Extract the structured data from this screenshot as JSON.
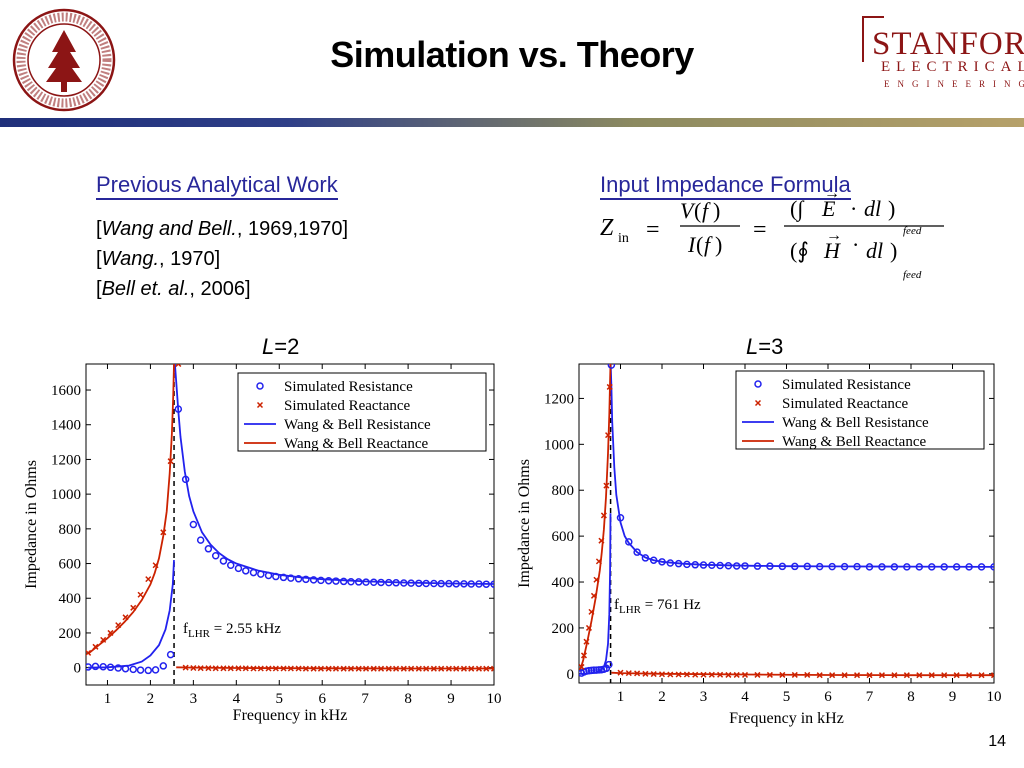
{
  "slide": {
    "title": "Simulation vs. Theory",
    "page_number": "14",
    "logo": {
      "line1": "STANFORD",
      "line2": "ELECTRICAL",
      "line3": "ENGINEERING"
    },
    "seal_text": "LELAND STANFORD JUNIOR UNIVERSITY · ORGANIZED 1891",
    "left_heading": "Previous Analytical Work",
    "refs": [
      {
        "author": "Wang and Bell.",
        "year": ", 1969,1970]"
      },
      {
        "author": "Wang.",
        "year": ", 1970]"
      },
      {
        "author": "Bell et. al.",
        "year": ", 2006]"
      }
    ],
    "right_heading": "Input Impedance Formula",
    "plot_left_label": {
      "var": "L",
      "val": "=2"
    },
    "plot_right_label": {
      "var": "L",
      "val": "=3"
    }
  },
  "chart_data": [
    {
      "type": "line",
      "xlabel": "Frequency in kHz",
      "ylabel": "Impedance in Ohms",
      "xlim": [
        0.5,
        10
      ],
      "ylim": [
        -100,
        1750
      ],
      "xticks": [
        1,
        2,
        3,
        4,
        5,
        6,
        7,
        8,
        9,
        10
      ],
      "yticks": [
        0,
        200,
        400,
        600,
        800,
        1000,
        1200,
        1400,
        1600
      ],
      "annotation": "= 2.55 kHz",
      "annotation_sub": "LHR",
      "marker_line_x": 2.55,
      "legend": [
        "Simulated Resistance",
        "Simulated Reactance",
        "Wang & Bell Resistance",
        "Wang & Bell Reactance"
      ],
      "colors": {
        "resistance": "#2222ee",
        "reactance": "#cc2200"
      },
      "series": [
        {
          "name": "Simulated Resistance",
          "kind": "points",
          "marker": "o",
          "x": [
            0.55,
            0.72,
            0.9,
            1.07,
            1.25,
            1.42,
            1.6,
            1.77,
            1.95,
            2.12,
            2.3,
            2.47,
            2.65,
            2.82,
            3.0,
            3.17,
            3.35,
            3.52,
            3.7,
            3.87,
            4.05,
            4.22,
            4.4,
            4.57,
            4.75,
            4.92,
            5.1,
            5.27,
            5.45,
            5.62,
            5.8,
            5.97,
            6.15,
            6.32,
            6.5,
            6.67,
            6.85,
            7.02,
            7.2,
            7.37,
            7.55,
            7.72,
            7.9,
            8.07,
            8.25,
            8.42,
            8.6,
            8.77,
            8.95,
            9.12,
            9.3,
            9.47,
            9.65,
            9.82,
            10.0
          ],
          "y": [
            4,
            7,
            5,
            2,
            -2,
            -6,
            -10,
            -14,
            -16,
            -13,
            10,
            75,
            1490,
            1085,
            825,
            735,
            685,
            645,
            615,
            590,
            572,
            558,
            548,
            539,
            531,
            525,
            520,
            516,
            512,
            509,
            506,
            503,
            501,
            499,
            497,
            495,
            494,
            493,
            492,
            491,
            490,
            489,
            488,
            487,
            486,
            485,
            485,
            484,
            484,
            483,
            483,
            482,
            482,
            481,
            481
          ]
        },
        {
          "name": "Simulated Reactance",
          "kind": "points",
          "marker": "x",
          "x": [
            0.55,
            0.72,
            0.9,
            1.07,
            1.25,
            1.42,
            1.6,
            1.77,
            1.95,
            2.12,
            2.3,
            2.47,
            2.65,
            2.82,
            3.0,
            3.17,
            3.35,
            3.52,
            3.7,
            3.87,
            4.05,
            4.22,
            4.4,
            4.57,
            4.75,
            4.92,
            5.1,
            5.27,
            5.45,
            5.62,
            5.8,
            5.97,
            6.15,
            6.32,
            6.5,
            6.67,
            6.85,
            7.02,
            7.2,
            7.37,
            7.55,
            7.72,
            7.9,
            8.07,
            8.25,
            8.42,
            8.6,
            8.77,
            8.95,
            9.12,
            9.3,
            9.47,
            9.65,
            9.82,
            10.0
          ],
          "y": [
            85,
            120,
            160,
            200,
            245,
            290,
            345,
            420,
            510,
            590,
            780,
            1190,
            1750,
            0,
            -2,
            -3,
            -3,
            -4,
            -4,
            -4,
            -4,
            -4,
            -5,
            -5,
            -5,
            -5,
            -5,
            -5,
            -5,
            -6,
            -6,
            -6,
            -6,
            -6,
            -6,
            -6,
            -6,
            -6,
            -6,
            -6,
            -6,
            -6,
            -6,
            -6,
            -6,
            -6,
            -6,
            -6,
            -6,
            -6,
            -6,
            -6,
            -6,
            -6,
            -6
          ]
        },
        {
          "name": "Wang & Bell Resistance",
          "kind": "line",
          "x": [
            2.57,
            2.6,
            2.65,
            2.7,
            2.8,
            2.9,
            3.0,
            3.2,
            3.4,
            3.6,
            3.8,
            4.0,
            4.5,
            5.0,
            5.5,
            6.0,
            7.0,
            8.0,
            9.0,
            10.0
          ],
          "y": [
            1750,
            1650,
            1480,
            1330,
            1130,
            990,
            900,
            780,
            710,
            660,
            625,
            600,
            560,
            535,
            520,
            510,
            497,
            490,
            485,
            482
          ]
        },
        {
          "name": "Wang & Bell Resistance (below f_LHR)",
          "kind": "line",
          "x": [
            0.55,
            1.0,
            1.5,
            1.8,
            2.0,
            2.2,
            2.35,
            2.45,
            2.52,
            2.55
          ],
          "y": [
            0,
            2,
            12,
            35,
            70,
            130,
            220,
            330,
            480,
            620
          ]
        },
        {
          "name": "Wang & Bell Reactance",
          "kind": "line",
          "x": [
            0.55,
            0.8,
            1.0,
            1.2,
            1.4,
            1.6,
            1.8,
            2.0,
            2.1,
            2.2,
            2.3,
            2.38,
            2.45,
            2.5,
            2.53,
            2.55
          ],
          "y": [
            80,
            130,
            170,
            215,
            265,
            320,
            390,
            480,
            545,
            630,
            760,
            900,
            1120,
            1350,
            1560,
            1750
          ]
        },
        {
          "name": "Wang & Bell Reactance (above f_LHR)",
          "kind": "line",
          "x": [
            2.6,
            3.0,
            4.0,
            6.0,
            8.0,
            10.0
          ],
          "y": [
            2,
            0,
            -2,
            -4,
            -5,
            -5
          ]
        }
      ]
    },
    {
      "type": "line",
      "xlabel": "Frequency in kHz",
      "ylabel": "Impedance in Ohms",
      "xlim": [
        0,
        10
      ],
      "ylim": [
        -40,
        1350
      ],
      "xticks": [
        1,
        2,
        3,
        4,
        5,
        6,
        7,
        8,
        9,
        10
      ],
      "yticks": [
        0,
        200,
        400,
        600,
        800,
        1000,
        1200
      ],
      "annotation": "= 761 Hz",
      "annotation_sub": "LHR",
      "marker_line_x": 0.761,
      "legend": [
        "Simulated Resistance",
        "Simulated Reactance",
        "Wang & Bell Resistance",
        "Wang & Bell Reactance"
      ],
      "colors": {
        "resistance": "#2222ee",
        "reactance": "#cc2200"
      },
      "series": [
        {
          "name": "Simulated Resistance",
          "kind": "points",
          "marker": "o",
          "x": [
            0.06,
            0.12,
            0.18,
            0.24,
            0.3,
            0.36,
            0.42,
            0.48,
            0.54,
            0.6,
            0.66,
            0.72,
            0.78,
            1.0,
            1.2,
            1.4,
            1.6,
            1.8,
            2.0,
            2.2,
            2.4,
            2.6,
            2.8,
            3.0,
            3.2,
            3.4,
            3.6,
            3.8,
            4.0,
            4.3,
            4.6,
            4.9,
            5.2,
            5.5,
            5.8,
            6.1,
            6.4,
            6.7,
            7.0,
            7.3,
            7.6,
            7.9,
            8.2,
            8.5,
            8.8,
            9.1,
            9.4,
            9.7,
            10.0
          ],
          "y": [
            3,
            8,
            12,
            14,
            15,
            16,
            16,
            17,
            18,
            20,
            24,
            40,
            1345,
            680,
            575,
            530,
            505,
            495,
            488,
            483,
            480,
            477,
            475,
            474,
            473,
            472,
            471,
            470,
            470,
            469,
            469,
            468,
            468,
            468,
            467,
            467,
            467,
            467,
            466,
            466,
            466,
            466,
            466,
            466,
            466,
            466,
            466,
            466,
            466
          ]
        },
        {
          "name": "Simulated Reactance",
          "kind": "points",
          "marker": "x",
          "x": [
            0.06,
            0.12,
            0.18,
            0.24,
            0.3,
            0.36,
            0.42,
            0.48,
            0.54,
            0.6,
            0.66,
            0.7,
            0.74,
            1.0,
            1.2,
            1.4,
            1.6,
            1.8,
            2.0,
            2.2,
            2.4,
            2.6,
            2.8,
            3.0,
            3.2,
            3.4,
            3.6,
            3.8,
            4.0,
            4.3,
            4.6,
            4.9,
            5.2,
            5.5,
            5.8,
            6.1,
            6.4,
            6.7,
            7.0,
            7.3,
            7.6,
            7.9,
            8.2,
            8.5,
            8.8,
            9.1,
            9.4,
            9.7,
            10.0
          ],
          "y": [
            30,
            80,
            140,
            200,
            270,
            340,
            410,
            490,
            580,
            690,
            820,
            1040,
            1250,
            5,
            3,
            2,
            0,
            -1,
            -2,
            -3,
            -3,
            -3,
            -4,
            -4,
            -4,
            -4,
            -5,
            -5,
            -5,
            -5,
            -5,
            -5,
            -5,
            -5,
            -6,
            -6,
            -6,
            -6,
            -6,
            -6,
            -6,
            -6,
            -6,
            -6,
            -6,
            -6,
            -6,
            -6,
            -6
          ]
        },
        {
          "name": "Wang & Bell Resistance",
          "kind": "line",
          "x": [
            0.765,
            0.78,
            0.8,
            0.85,
            0.9,
            1.0,
            1.1,
            1.2,
            1.4,
            1.6,
            1.8,
            2.0,
            2.5,
            3.0,
            4.0,
            5.0,
            6.0,
            8.0,
            10.0
          ],
          "y": [
            1350,
            1250,
            1100,
            900,
            780,
            660,
            600,
            570,
            530,
            507,
            495,
            488,
            480,
            475,
            471,
            469,
            468,
            467,
            466
          ]
        },
        {
          "name": "Wang & Bell Resistance (below f_LHR)",
          "kind": "line",
          "x": [
            0.02,
            0.2,
            0.4,
            0.5,
            0.6,
            0.65,
            0.7,
            0.73,
            0.75,
            0.76
          ],
          "y": [
            0,
            1,
            5,
            12,
            30,
            60,
            130,
            260,
            450,
            700
          ]
        },
        {
          "name": "Wang & Bell Reactance",
          "kind": "line",
          "x": [
            0.02,
            0.1,
            0.2,
            0.3,
            0.4,
            0.5,
            0.55,
            0.6,
            0.65,
            0.7,
            0.73,
            0.75,
            0.76
          ],
          "y": [
            10,
            60,
            140,
            230,
            330,
            450,
            530,
            630,
            770,
            960,
            1130,
            1280,
            1350
          ]
        },
        {
          "name": "Wang & Bell Reactance (above f_LHR)",
          "kind": "line",
          "x": [
            0.78,
            1.0,
            2.0,
            4.0,
            6.0,
            8.0,
            10.0
          ],
          "y": [
            5,
            3,
            0,
            -3,
            -5,
            -6,
            -6
          ]
        }
      ]
    }
  ]
}
